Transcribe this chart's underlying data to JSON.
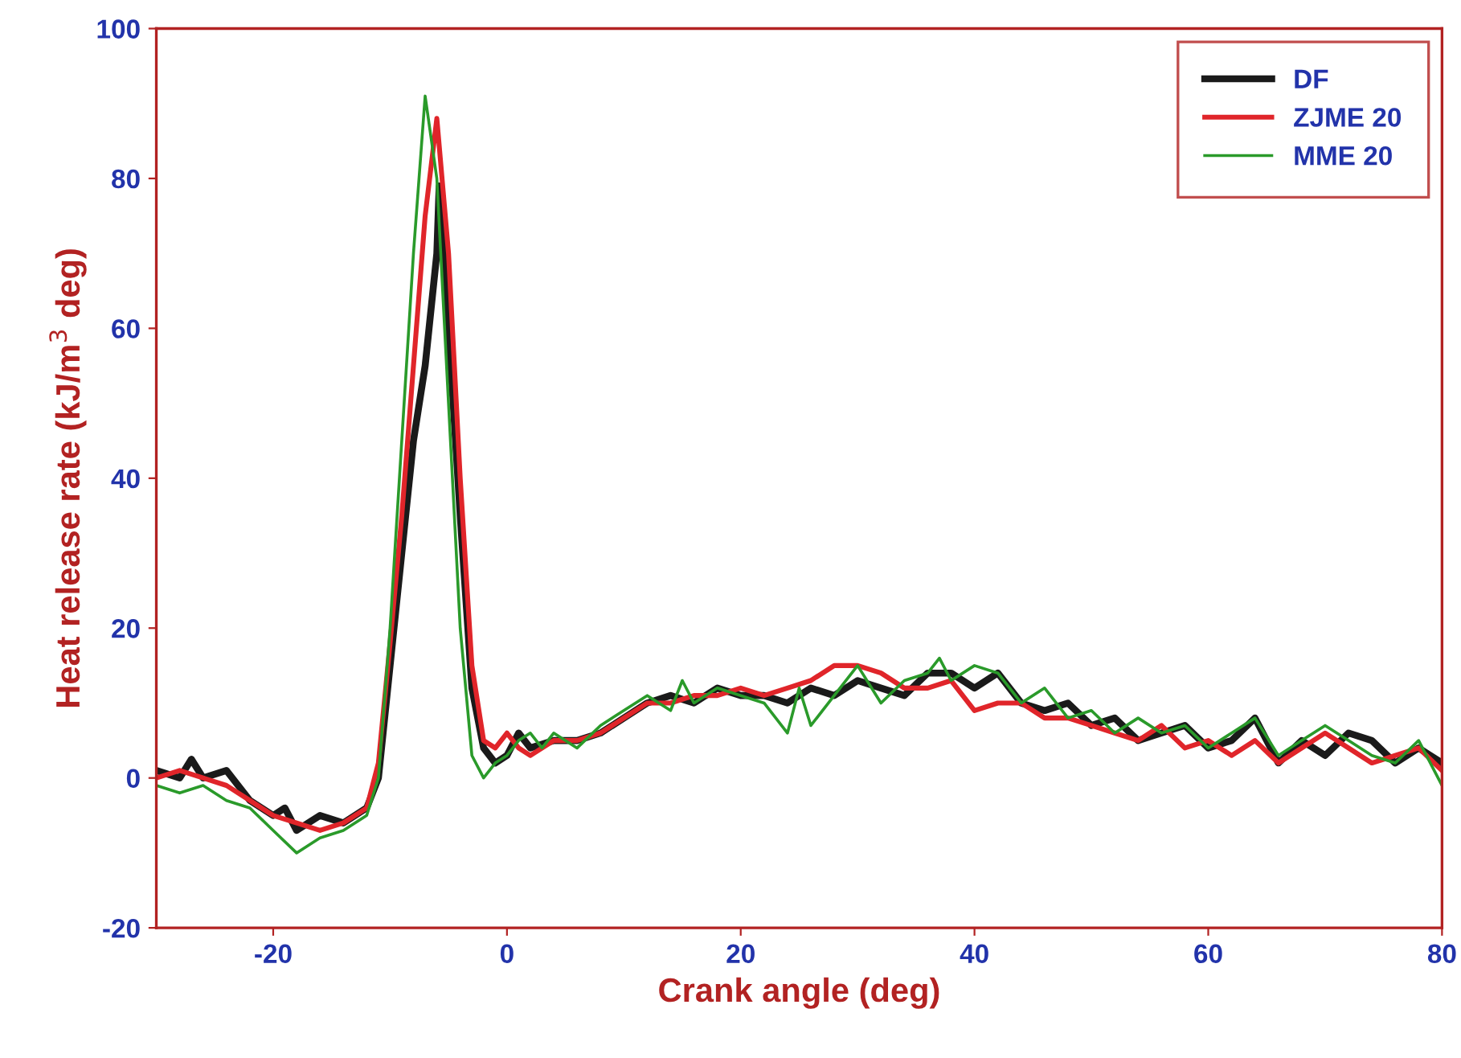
{
  "chart_data": {
    "type": "line",
    "xlabel": "Crank angle (deg)",
    "ylabel": "Heat release rate (kJ/m$^{3}$ deg)",
    "xlim": [
      -30,
      80
    ],
    "xticks": [
      -20,
      0,
      20,
      40,
      60,
      80
    ],
    "ylim": [
      -20,
      100
    ],
    "yticks": [
      -20,
      0,
      20,
      40,
      60,
      80,
      100
    ],
    "grid": false,
    "legend": "top right",
    "marker": "none",
    "line_style": "solid",
    "series": [
      {
        "name": "DF",
        "color": "#1a1a1a",
        "x": [
          -30,
          -28,
          -27,
          -26,
          -24,
          -22,
          -20,
          -19,
          -18,
          -16,
          -14,
          -12,
          -11,
          -10,
          -9,
          -8,
          -7,
          -6,
          -5.8,
          -5,
          -4,
          -3,
          -2,
          -1,
          0,
          1,
          2,
          4,
          6,
          8,
          10,
          12,
          14,
          16,
          18,
          20,
          22,
          24,
          26,
          28,
          30,
          32,
          34,
          36,
          38,
          40,
          42,
          44,
          46,
          48,
          50,
          52,
          54,
          56,
          58,
          60,
          62,
          64,
          66,
          68,
          70,
          72,
          74,
          76,
          78,
          80
        ],
        "values": [
          1,
          0,
          2.5,
          0,
          1,
          -3,
          -5,
          -4,
          -7,
          -5,
          -6,
          -4,
          0,
          15,
          30,
          45,
          55,
          70,
          79,
          60,
          35,
          12,
          4,
          2,
          3,
          6,
          4,
          5,
          5,
          6,
          8,
          10,
          11,
          10,
          12,
          11,
          11,
          10,
          12,
          11,
          13,
          12,
          11,
          14,
          14,
          12,
          14,
          10,
          9,
          10,
          7,
          8,
          5,
          6,
          7,
          4,
          5,
          8,
          2,
          5,
          3,
          6,
          5,
          2,
          4,
          2
        ]
      },
      {
        "name": "ZJME 20",
        "color": "#e0252a",
        "x": [
          -30,
          -28,
          -26,
          -24,
          -22,
          -20,
          -18,
          -16,
          -14,
          -12,
          -11,
          -10,
          -9,
          -8,
          -7,
          -6,
          -5,
          -4,
          -3,
          -2,
          -1,
          0,
          1,
          2,
          4,
          6,
          8,
          10,
          12,
          14,
          16,
          18,
          20,
          22,
          24,
          26,
          28,
          30,
          32,
          34,
          36,
          38,
          40,
          42,
          44,
          46,
          48,
          50,
          52,
          54,
          56,
          58,
          60,
          62,
          64,
          66,
          68,
          70,
          72,
          74,
          76,
          78,
          80
        ],
        "values": [
          0,
          1,
          0,
          -1,
          -3,
          -5,
          -6,
          -7,
          -6,
          -4,
          2,
          18,
          35,
          55,
          75,
          88,
          70,
          40,
          15,
          5,
          4,
          6,
          4,
          3,
          5,
          5,
          6,
          8,
          10,
          10,
          11,
          11,
          12,
          11,
          12,
          13,
          15,
          15,
          14,
          12,
          12,
          13,
          9,
          10,
          10,
          8,
          8,
          7,
          6,
          5,
          7,
          4,
          5,
          3,
          5,
          2,
          4,
          6,
          4,
          2,
          3,
          4,
          1
        ]
      },
      {
        "name": "MME 20",
        "color": "#2a9a2a",
        "x": [
          -30,
          -28,
          -26,
          -24,
          -22,
          -20,
          -18,
          -16,
          -14,
          -12,
          -11,
          -10,
          -9,
          -8,
          -7,
          -6,
          -5,
          -4,
          -3,
          -2,
          -1,
          0,
          1,
          2,
          3,
          4,
          6,
          8,
          10,
          12,
          14,
          15,
          16,
          18,
          20,
          22,
          24,
          25,
          26,
          28,
          30,
          32,
          34,
          36,
          37,
          38,
          40,
          42,
          44,
          46,
          48,
          50,
          52,
          54,
          56,
          58,
          60,
          62,
          64,
          66,
          68,
          70,
          72,
          74,
          76,
          78,
          80
        ],
        "values": [
          -1,
          -2,
          -1,
          -3,
          -4,
          -7,
          -10,
          -8,
          -7,
          -5,
          0,
          20,
          45,
          70,
          91,
          80,
          50,
          20,
          3,
          0,
          2,
          3,
          5,
          6,
          4,
          6,
          4,
          7,
          9,
          11,
          9,
          13,
          10,
          12,
          11,
          10,
          6,
          12,
          7,
          11,
          15,
          10,
          13,
          14,
          16,
          13,
          15,
          14,
          10,
          12,
          8,
          9,
          6,
          8,
          6,
          7,
          4,
          6,
          8,
          3,
          5,
          7,
          5,
          3,
          2,
          5,
          -1
        ]
      }
    ]
  }
}
